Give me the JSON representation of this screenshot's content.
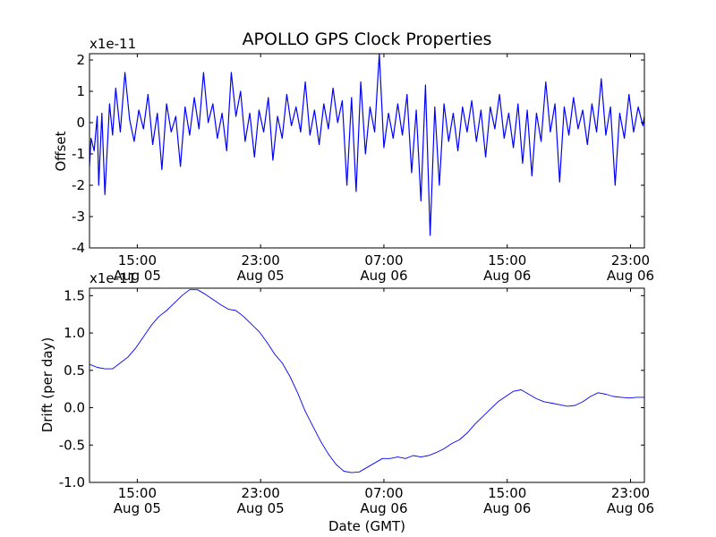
{
  "chart_data": [
    {
      "type": "line",
      "title": "APOLLO GPS Clock Properties",
      "ylabel": "Offset",
      "xlabel": "",
      "y_multiplier": "x1e-11",
      "ylim": [
        -4,
        2.2
      ],
      "xlim_hours": [
        0,
        36
      ],
      "yticks": [
        {
          "value": -4,
          "label": "-4"
        },
        {
          "value": -3,
          "label": "-3"
        },
        {
          "value": -2,
          "label": "-2"
        },
        {
          "value": -1,
          "label": "-1"
        },
        {
          "value": 0,
          "label": "0"
        },
        {
          "value": 1,
          "label": "1"
        },
        {
          "value": 2,
          "label": "2"
        }
      ],
      "xticks": [
        {
          "value": 3.1,
          "time": "15:00",
          "date": "Aug 05"
        },
        {
          "value": 11.1,
          "time": "23:00",
          "date": "Aug 05"
        },
        {
          "value": 19.1,
          "time": "07:00",
          "date": "Aug 06"
        },
        {
          "value": 27.1,
          "time": "15:00",
          "date": "Aug 06"
        },
        {
          "value": 35.1,
          "time": "23:00",
          "date": "Aug 06"
        }
      ],
      "line_color": "#0000ff",
      "series": [
        {
          "name": "Offset",
          "x": [
            0,
            0.1,
            0.3,
            0.5,
            0.6,
            0.8,
            1.0,
            1.3,
            1.5,
            1.7,
            2.0,
            2.3,
            2.6,
            2.9,
            3.2,
            3.5,
            3.8,
            4.1,
            4.4,
            4.7,
            5.0,
            5.3,
            5.6,
            5.9,
            6.2,
            6.5,
            6.8,
            7.1,
            7.4,
            7.7,
            8.0,
            8.3,
            8.6,
            8.9,
            9.2,
            9.5,
            9.8,
            10.1,
            10.4,
            10.7,
            11.0,
            11.3,
            11.6,
            11.9,
            12.2,
            12.5,
            12.8,
            13.1,
            13.4,
            13.7,
            14.0,
            14.3,
            14.6,
            14.9,
            15.2,
            15.5,
            15.8,
            16.1,
            16.4,
            16.7,
            17.0,
            17.3,
            17.6,
            17.9,
            18.2,
            18.5,
            18.8,
            19.1,
            19.4,
            19.7,
            20.0,
            20.3,
            20.6,
            20.9,
            21.2,
            21.5,
            21.8,
            22.1,
            22.4,
            22.7,
            23.0,
            23.3,
            23.6,
            23.9,
            24.2,
            24.5,
            24.8,
            25.1,
            25.4,
            25.7,
            26.0,
            26.3,
            26.6,
            26.9,
            27.2,
            27.5,
            27.8,
            28.1,
            28.4,
            28.7,
            29.0,
            29.3,
            29.6,
            29.9,
            30.2,
            30.5,
            30.8,
            31.1,
            31.4,
            31.7,
            32.0,
            32.3,
            32.6,
            32.9,
            33.2,
            33.5,
            33.8,
            34.1,
            34.4,
            34.7,
            35.0,
            35.3,
            35.6,
            35.9,
            36.0
          ],
          "y": [
            -1.4,
            -0.5,
            -0.9,
            0.2,
            -2.0,
            0.3,
            -2.3,
            0.6,
            -0.4,
            1.1,
            -0.3,
            1.6,
            0.1,
            -0.6,
            0.4,
            -0.2,
            0.9,
            -0.7,
            0.3,
            -1.5,
            0.6,
            -0.3,
            0.2,
            -1.4,
            0.5,
            -0.4,
            0.8,
            -0.2,
            1.6,
            0.0,
            0.6,
            -0.5,
            0.3,
            -0.9,
            1.6,
            0.2,
            1.0,
            -0.6,
            0.3,
            -1.1,
            0.4,
            -0.3,
            0.8,
            -1.2,
            0.2,
            -0.5,
            0.9,
            -0.1,
            0.5,
            -0.3,
            1.3,
            -0.4,
            0.4,
            -0.7,
            0.6,
            -0.2,
            1.1,
            0.0,
            0.7,
            -2.0,
            0.8,
            -2.2,
            1.3,
            -1.0,
            0.5,
            -0.3,
            2.2,
            -0.8,
            0.3,
            -0.5,
            0.6,
            -0.4,
            0.9,
            -1.6,
            0.4,
            -2.5,
            1.2,
            -3.6,
            0.5,
            -2.0,
            0.6,
            -0.6,
            0.3,
            -0.9,
            0.5,
            -0.3,
            0.7,
            -0.6,
            0.4,
            -1.1,
            0.5,
            -0.2,
            0.9,
            -0.5,
            0.3,
            -0.8,
            0.6,
            -1.3,
            0.4,
            -1.7,
            0.3,
            -0.6,
            1.3,
            -0.3,
            0.6,
            -1.9,
            0.5,
            -0.4,
            0.8,
            -0.2,
            0.4,
            -0.7,
            0.6,
            -0.3,
            1.4,
            -0.4,
            0.5,
            -2.0,
            0.3,
            -0.5,
            0.9,
            -0.3,
            0.5,
            -0.1,
            0.2
          ]
        }
      ]
    },
    {
      "type": "line",
      "title": "",
      "ylabel": "Drift (per day)",
      "xlabel": "Date (GMT)",
      "y_multiplier": "x1e-11",
      "ylim": [
        -1.0,
        1.6
      ],
      "xlim_hours": [
        0,
        36
      ],
      "yticks": [
        {
          "value": -1.0,
          "label": "-1.0"
        },
        {
          "value": -0.5,
          "label": "-0.5"
        },
        {
          "value": 0.0,
          "label": "0.0"
        },
        {
          "value": 0.5,
          "label": "0.5"
        },
        {
          "value": 1.0,
          "label": "1.0"
        },
        {
          "value": 1.5,
          "label": "1.5"
        }
      ],
      "xticks": [
        {
          "value": 3.1,
          "time": "15:00",
          "date": "Aug 05"
        },
        {
          "value": 11.1,
          "time": "23:00",
          "date": "Aug 05"
        },
        {
          "value": 19.1,
          "time": "07:00",
          "date": "Aug 06"
        },
        {
          "value": 27.1,
          "time": "15:00",
          "date": "Aug 06"
        },
        {
          "value": 35.1,
          "time": "23:00",
          "date": "Aug 06"
        }
      ],
      "line_color": "#0000ff",
      "series": [
        {
          "name": "Drift",
          "x": [
            0,
            0.5,
            1.0,
            1.5,
            2.0,
            2.5,
            3.0,
            3.5,
            4.0,
            4.5,
            5.0,
            5.5,
            6.0,
            6.5,
            7.0,
            7.5,
            8.0,
            8.5,
            9.0,
            9.5,
            10.0,
            10.5,
            11.0,
            11.5,
            12.0,
            12.5,
            13.0,
            13.5,
            14.0,
            14.5,
            15.0,
            15.5,
            16.0,
            16.5,
            17.0,
            17.5,
            18.0,
            18.5,
            19.0,
            19.5,
            20.0,
            20.5,
            21.0,
            21.5,
            22.0,
            22.5,
            23.0,
            23.5,
            24.0,
            24.5,
            25.0,
            25.5,
            26.0,
            26.5,
            27.0,
            27.5,
            28.0,
            28.5,
            29.0,
            29.5,
            30.0,
            30.5,
            31.0,
            31.5,
            32.0,
            32.5,
            33.0,
            33.5,
            34.0,
            34.5,
            35.0,
            35.5,
            36.0
          ],
          "y": [
            0.58,
            0.54,
            0.52,
            0.52,
            0.6,
            0.68,
            0.8,
            0.95,
            1.1,
            1.22,
            1.3,
            1.4,
            1.5,
            1.58,
            1.58,
            1.52,
            1.45,
            1.38,
            1.32,
            1.3,
            1.22,
            1.12,
            1.02,
            0.88,
            0.72,
            0.6,
            0.42,
            0.2,
            -0.05,
            -0.25,
            -0.45,
            -0.62,
            -0.76,
            -0.85,
            -0.87,
            -0.86,
            -0.8,
            -0.74,
            -0.68,
            -0.68,
            -0.66,
            -0.68,
            -0.64,
            -0.66,
            -0.64,
            -0.6,
            -0.55,
            -0.48,
            -0.43,
            -0.34,
            -0.22,
            -0.12,
            -0.02,
            0.08,
            0.15,
            0.22,
            0.24,
            0.18,
            0.12,
            0.08,
            0.06,
            0.04,
            0.02,
            0.03,
            0.08,
            0.15,
            0.2,
            0.18,
            0.15,
            0.14,
            0.13,
            0.14,
            0.14
          ]
        }
      ]
    }
  ]
}
